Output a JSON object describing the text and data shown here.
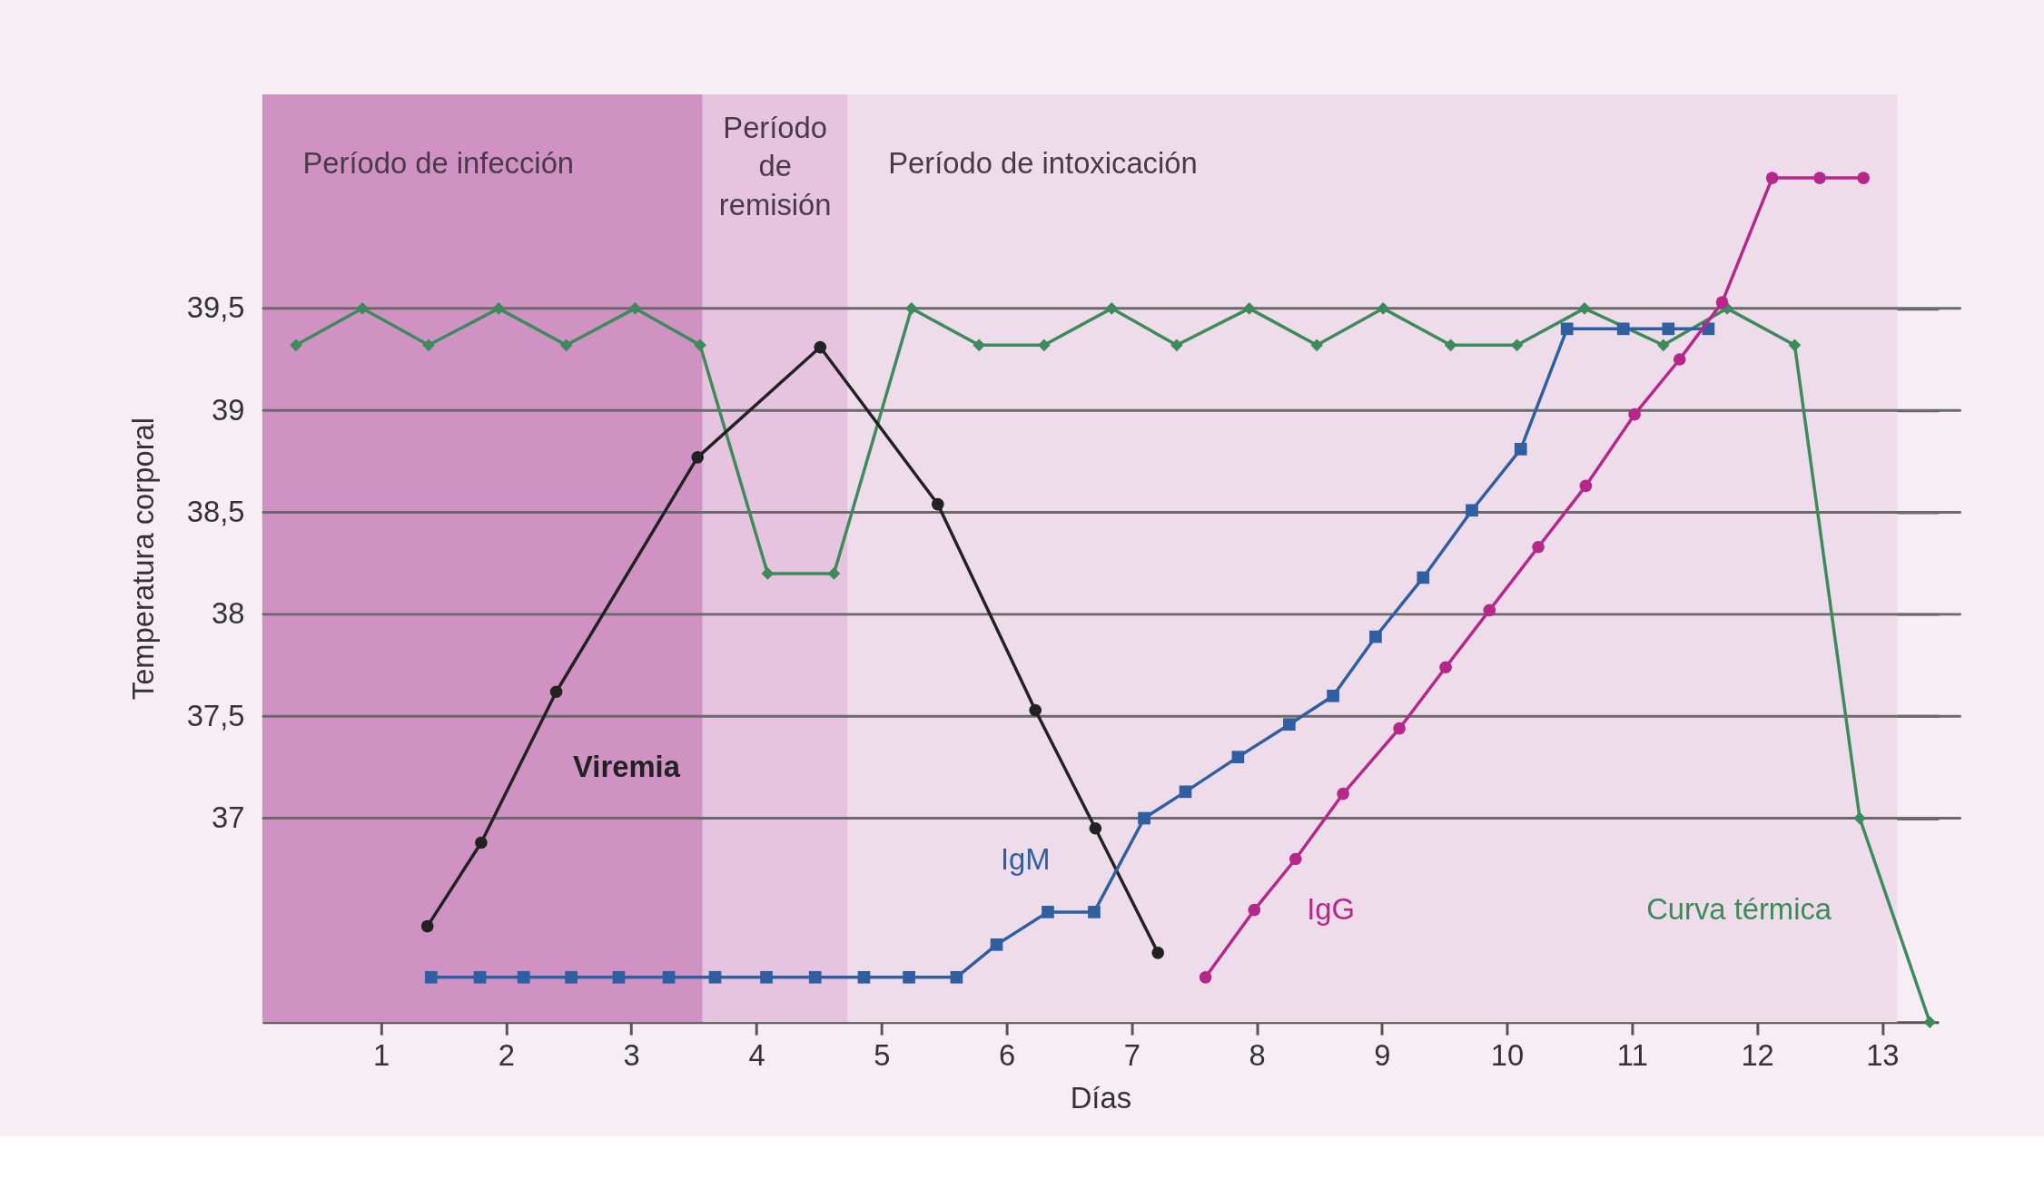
{
  "chart_data": {
    "type": "line",
    "xlabel": "Días",
    "ylabel": "Temperatura corporal",
    "xlim": [
      0.05,
      13.45
    ],
    "ylim": [
      36,
      40.55
    ],
    "xticks": [
      1,
      2,
      3,
      4,
      5,
      6,
      7,
      8,
      9,
      10,
      11,
      12,
      13
    ],
    "yticks": [
      {
        "value": 37,
        "label": "37"
      },
      {
        "value": 37.5,
        "label": "37,5"
      },
      {
        "value": 38,
        "label": "38"
      },
      {
        "value": 38.5,
        "label": "38,5"
      },
      {
        "value": 39,
        "label": "39"
      },
      {
        "value": 39.5,
        "label": "39,5"
      }
    ],
    "grid": "y",
    "line_style": "solid",
    "bands": [
      {
        "axis": "x",
        "from": 0.05,
        "to": 3.57,
        "label": "Período de infección",
        "color": "#cf92c3"
      },
      {
        "axis": "x",
        "from": 3.57,
        "to": 4.73,
        "label": "Período de remisión",
        "color": "#e6c3df"
      },
      {
        "axis": "x",
        "from": 4.73,
        "to": 13.12,
        "label": "Período de intoxicación",
        "color": "#eedcea"
      }
    ],
    "series": [
      {
        "name": "Curva térmica",
        "color": "#3d8a5a",
        "marker": "diamond",
        "x": [
          0.32,
          0.85,
          1.38,
          1.94,
          2.48,
          3.03,
          3.55,
          4.09,
          4.62,
          5.24,
          5.78,
          6.3,
          6.84,
          7.36,
          7.94,
          8.48,
          9.01,
          9.55,
          10.08,
          10.62,
          11.25,
          11.76,
          12.3,
          12.82,
          13.38
        ],
        "values": [
          39.32,
          39.5,
          39.32,
          39.5,
          39.32,
          39.5,
          39.32,
          38.2,
          38.2,
          39.5,
          39.32,
          39.32,
          39.5,
          39.32,
          39.5,
          39.32,
          39.5,
          39.32,
          39.32,
          39.5,
          39.32,
          39.5,
          39.32,
          37.0,
          36.0
        ]
      },
      {
        "name": "Viremia",
        "color": "#222222",
        "marker": "circle",
        "x": [
          1.37,
          1.8,
          2.4,
          3.53,
          4.51,
          5.45,
          6.23,
          6.71,
          7.21
        ],
        "values": [
          36.47,
          36.88,
          37.62,
          38.77,
          39.31,
          38.54,
          37.53,
          36.95,
          36.34
        ]
      },
      {
        "name": "IgM",
        "color": "#2f5fa0",
        "marker": "square",
        "x": [
          1.4,
          1.79,
          2.14,
          2.52,
          2.9,
          3.3,
          3.67,
          4.08,
          4.47,
          4.86,
          5.22,
          5.6,
          5.92,
          6.33,
          6.7,
          7.1,
          7.43,
          7.85,
          8.26,
          8.61,
          8.95,
          9.33,
          9.72,
          10.11,
          10.48,
          10.93,
          11.29,
          11.61
        ],
        "values": [
          36.22,
          36.22,
          36.22,
          36.22,
          36.22,
          36.22,
          36.22,
          36.22,
          36.22,
          36.22,
          36.22,
          36.22,
          36.38,
          36.54,
          36.54,
          37.0,
          37.13,
          37.3,
          37.46,
          37.6,
          37.89,
          38.18,
          38.51,
          38.81,
          39.4,
          39.4,
          39.4,
          39.4
        ]
      },
      {
        "name": "IgG",
        "color": "#b5288a",
        "marker": "circle",
        "x": [
          7.59,
          7.98,
          8.31,
          8.69,
          9.14,
          9.51,
          9.86,
          10.25,
          10.63,
          11.02,
          11.38,
          11.72,
          12.12,
          12.5,
          12.85
        ],
        "values": [
          36.22,
          36.55,
          36.8,
          37.12,
          37.44,
          37.74,
          38.02,
          38.33,
          38.63,
          38.98,
          39.25,
          39.53,
          40.14,
          40.14,
          40.14
        ]
      }
    ]
  }
}
